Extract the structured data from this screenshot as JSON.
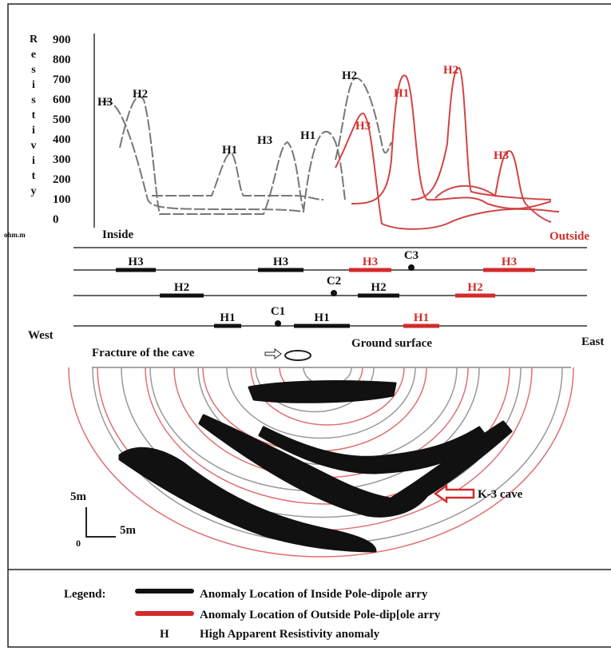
{
  "plot": {
    "axis_label": "Resistivity",
    "ticks": [
      "900",
      "800",
      "700",
      "600",
      "500",
      "400",
      "300",
      "200",
      "100",
      "0"
    ],
    "unit": "ohm.m",
    "inside": "Inside",
    "outside": "Outside",
    "peaks": [
      "H3",
      "H2",
      "H1",
      "H3",
      "H1",
      "H2",
      "H3",
      "H1",
      "H2",
      "H3"
    ]
  },
  "profiles": {
    "rows": [
      {
        "anomalies": [
          "H3",
          "H3",
          "H3",
          "H3"
        ],
        "station": "C3"
      },
      {
        "anomalies": [
          "H2",
          "H2",
          "H2"
        ],
        "station": "C2"
      },
      {
        "anomalies": [
          "H1",
          "H1",
          "H1"
        ],
        "station": "C1"
      }
    ]
  },
  "section": {
    "west": "West",
    "east": "East",
    "fracture": "Fracture of the cave",
    "ground": "Ground surface",
    "cave": "K-3 cave",
    "scale_v": "5m",
    "scale_h": "5m",
    "origin": "0"
  },
  "legend": {
    "title": "Legend:",
    "items": [
      "Anomaly Location of Inside Pole-dipole arry",
      "Anomaly Location of Outside Pole-dip[ole arry",
      "High Apparent Resistivity anomaly"
    ],
    "symbol": "H"
  }
}
